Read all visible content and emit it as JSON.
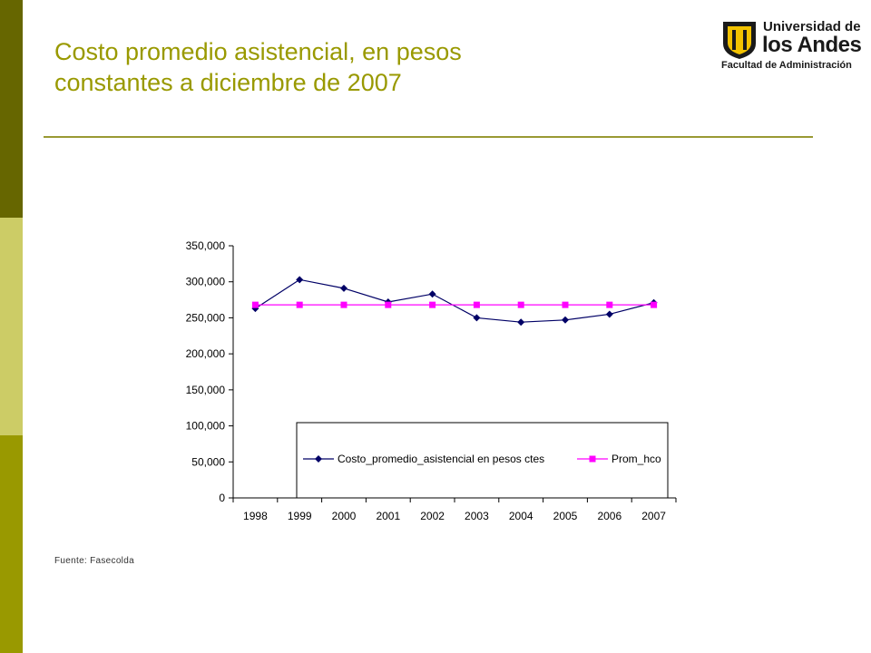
{
  "slide": {
    "title_line1": "Costo promedio asistencial, en pesos",
    "title_line2": "constantes a diciembre de 2007",
    "source": "Fuente: Fasecolda"
  },
  "logo": {
    "line1": "Universidad de",
    "line2": "los Andes",
    "line3": "Facultad de Administración"
  },
  "colors": {
    "sidebar_dark": "#666600",
    "sidebar_light": "#cccc66",
    "sidebar_mid": "#999900",
    "title": "#999900",
    "series1": "#000066",
    "series2": "#ff00ff"
  },
  "chart_data": {
    "type": "line",
    "categories": [
      "1998",
      "1999",
      "2000",
      "2001",
      "2002",
      "2003",
      "2004",
      "2005",
      "2006",
      "2007"
    ],
    "ylim": [
      0,
      350000
    ],
    "yticks": [
      0,
      50000,
      100000,
      150000,
      200000,
      250000,
      300000,
      350000
    ],
    "ytick_labels": [
      "0",
      "50,000",
      "100,000",
      "150,000",
      "200,000",
      "250,000",
      "300,000",
      "350,000"
    ],
    "grid": false,
    "legend_position": "bottom-right inside plot",
    "series": [
      {
        "name": "Costo_promedio_asistencial en pesos ctes",
        "marker": "diamond",
        "color": "#000066",
        "values": [
          263000,
          303000,
          291000,
          272000,
          283000,
          250000,
          244000,
          247000,
          255000,
          271000
        ]
      },
      {
        "name": "Prom_hco",
        "marker": "square",
        "color": "#ff00ff",
        "values": [
          268000,
          268000,
          268000,
          268000,
          268000,
          268000,
          268000,
          268000,
          268000,
          268000
        ]
      }
    ]
  }
}
